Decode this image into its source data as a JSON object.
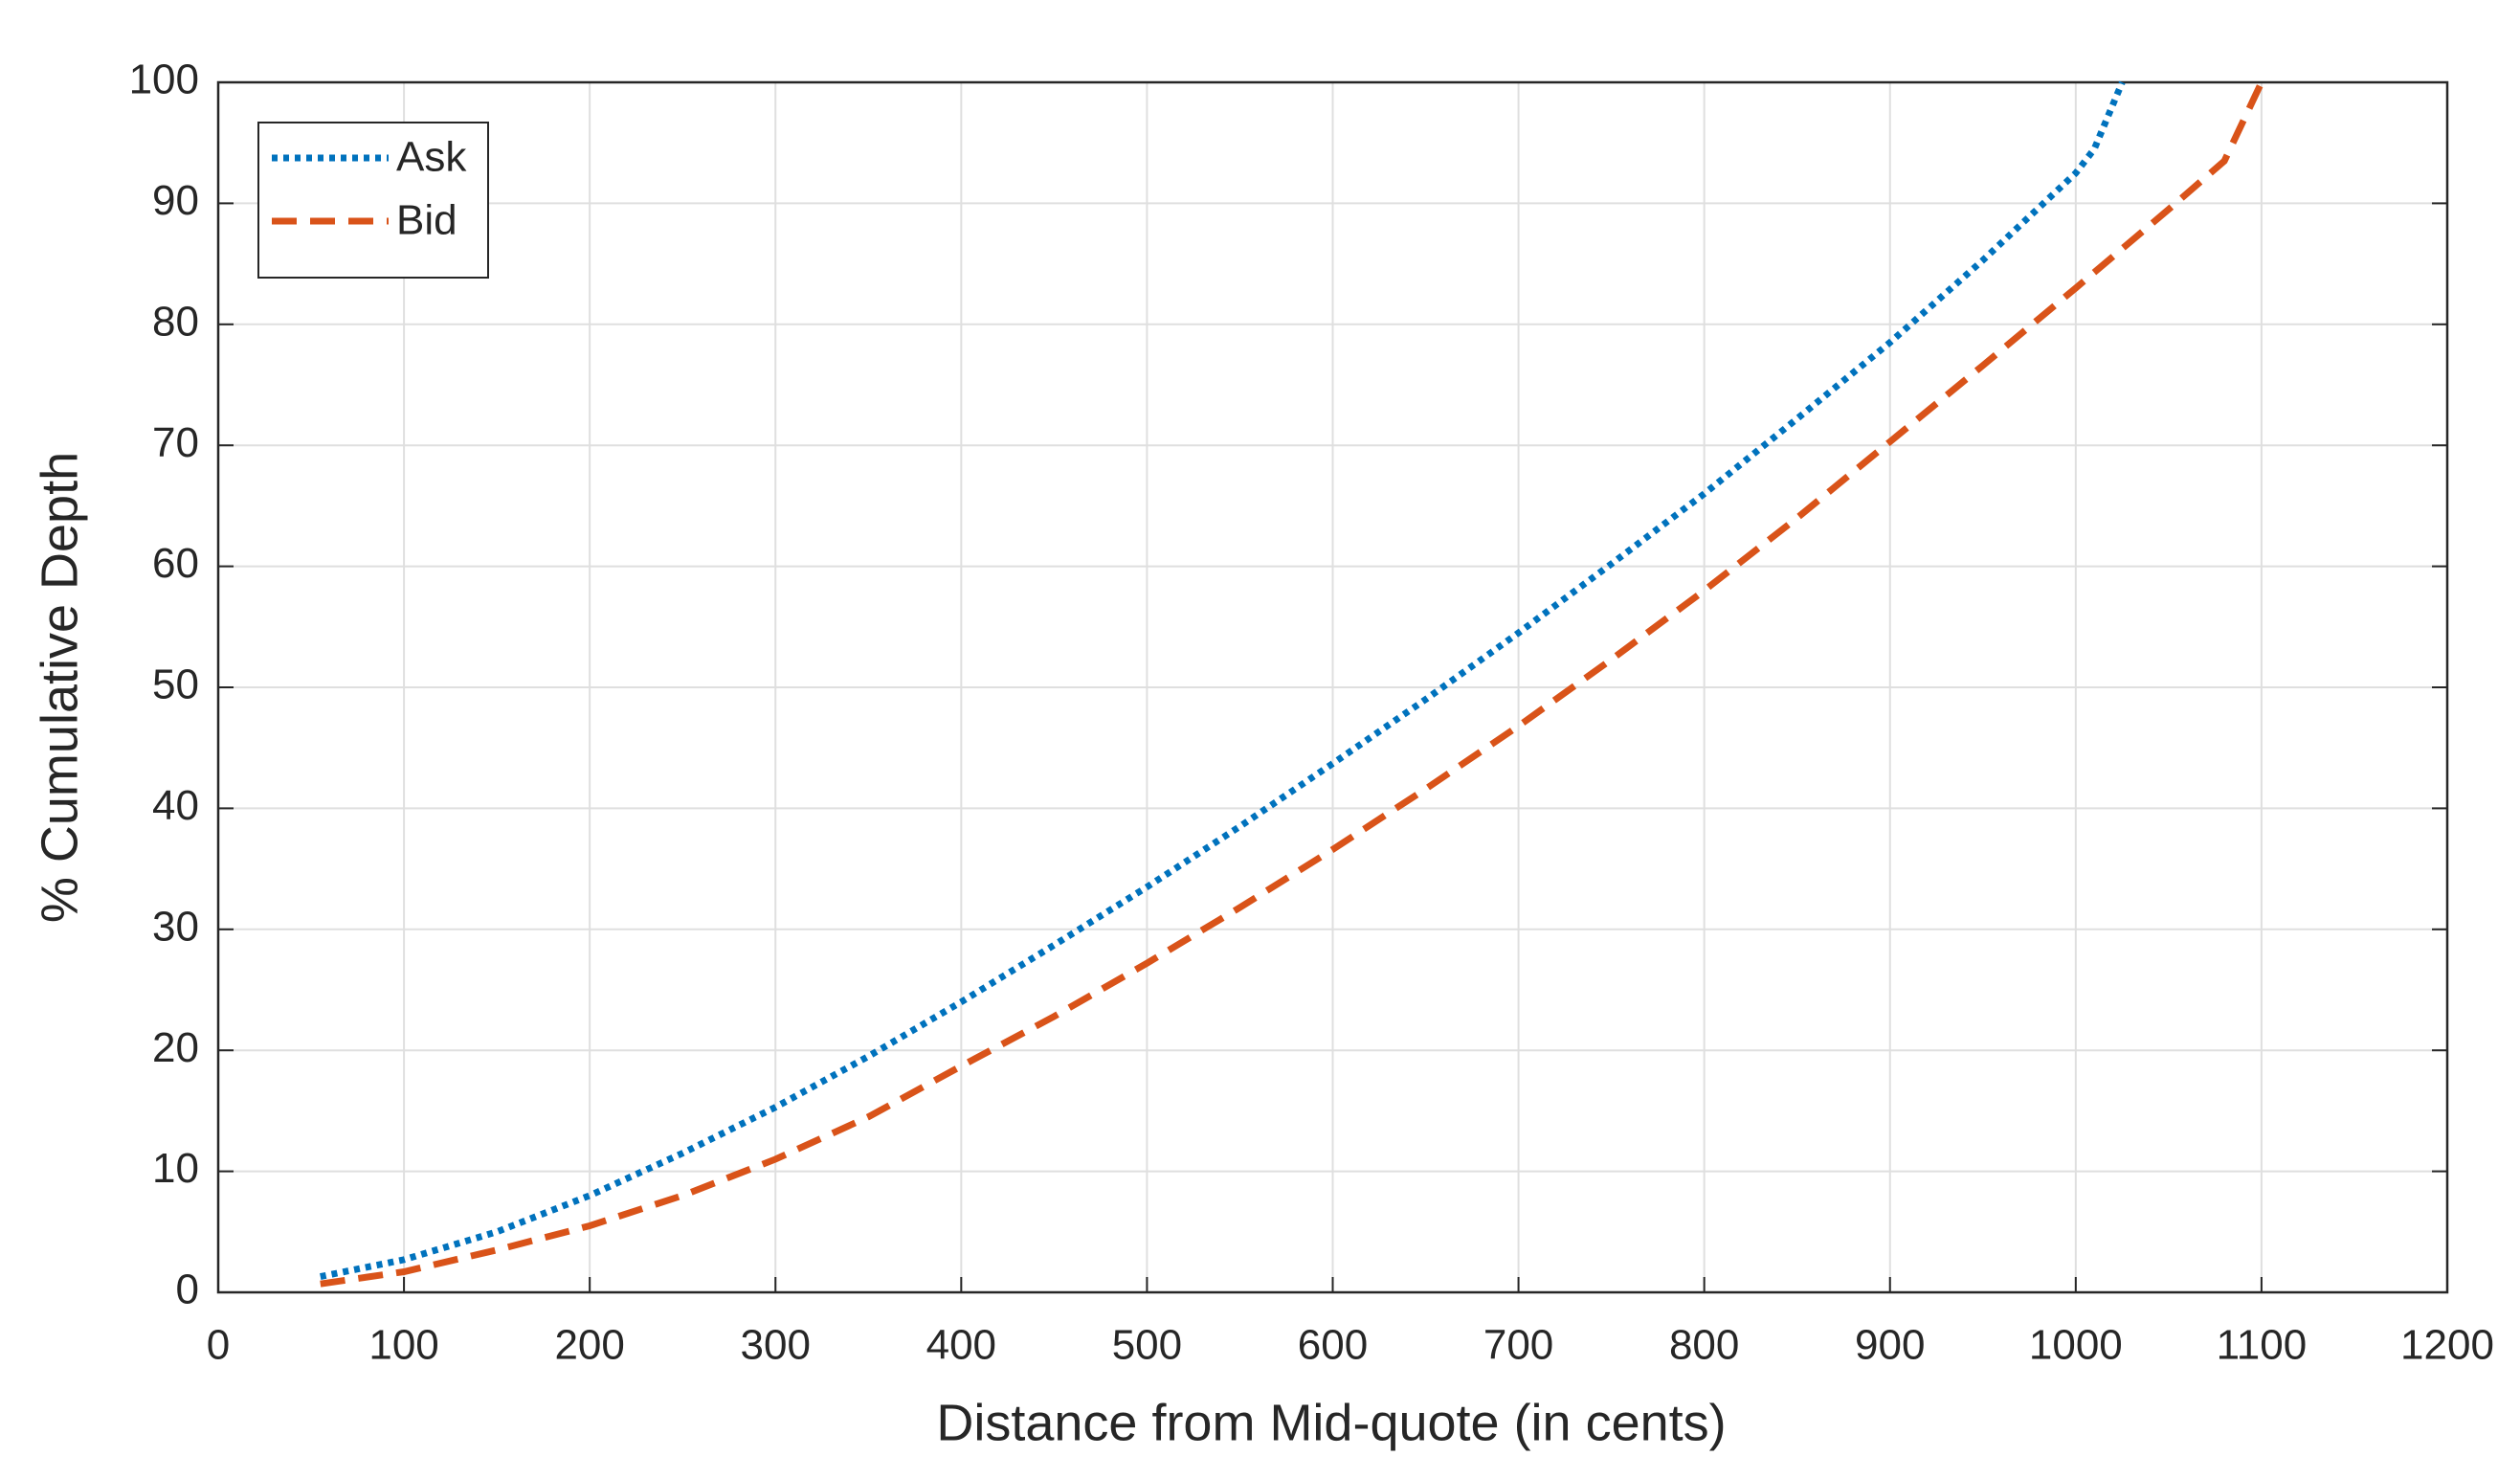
{
  "chart_data": {
    "type": "line",
    "xlabel": "Distance from Mid-quote (in cents)",
    "ylabel": "% Cumulative Depth",
    "xlim": [
      0,
      1200
    ],
    "xticks": [
      0,
      100,
      200,
      300,
      400,
      500,
      600,
      700,
      800,
      900,
      1000,
      1100,
      1200
    ],
    "ylim": [
      0,
      100
    ],
    "yticks": [
      0,
      10,
      20,
      30,
      40,
      50,
      60,
      70,
      80,
      90,
      100
    ],
    "grid": true,
    "legend": "upper-left",
    "series": [
      {
        "name": "Ask",
        "color": "#0072bd",
        "style": "dotted",
        "x": [
          55,
          100,
          150,
          200,
          250,
          300,
          350,
          400,
          450,
          500,
          550,
          600,
          650,
          700,
          750,
          800,
          850,
          900,
          950,
          1000,
          1010,
          1025
        ],
        "values": [
          1.3,
          2.7,
          5,
          8,
          11.5,
          15.3,
          19.5,
          24,
          28.7,
          33.5,
          38.5,
          43.7,
          49,
          54.5,
          60.2,
          66,
          72.2,
          78.5,
          85.3,
          92.5,
          94.5,
          100
        ]
      },
      {
        "name": "Bid",
        "color": "#d95319",
        "style": "dashed",
        "x": [
          55,
          100,
          150,
          200,
          250,
          300,
          350,
          400,
          450,
          500,
          550,
          600,
          650,
          700,
          750,
          800,
          850,
          900,
          950,
          1000,
          1050,
          1080,
          1100
        ],
        "values": [
          0.7,
          1.7,
          3.5,
          5.5,
          8,
          11,
          14.5,
          18.7,
          22.8,
          27.2,
          31.8,
          36.6,
          41.6,
          46.8,
          52.3,
          58,
          64,
          70.3,
          76.6,
          83,
          89.5,
          93.5,
          100
        ]
      }
    ]
  }
}
